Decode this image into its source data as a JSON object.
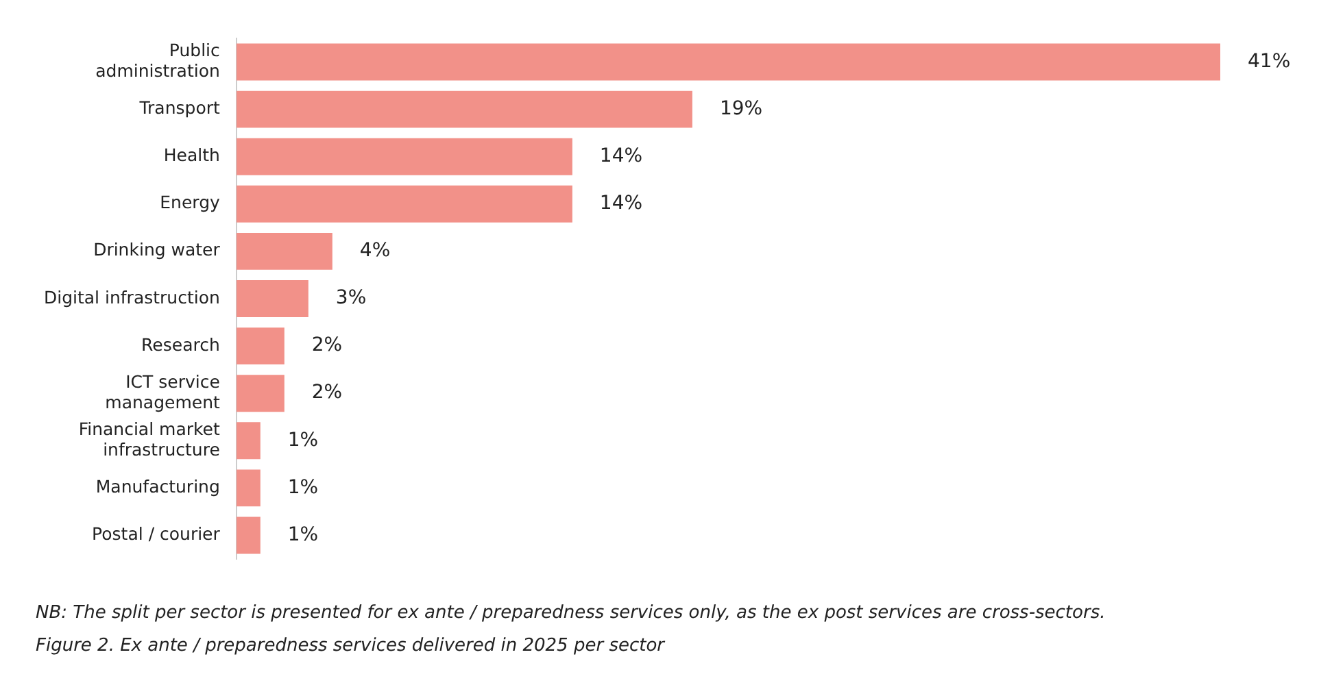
{
  "chart_data": {
    "type": "bar",
    "orientation": "horizontal",
    "categories": [
      "Public\nadministration",
      "Transport",
      "Health",
      "Energy",
      "Drinking water",
      "Digital infrastruction",
      "Research",
      "ICT service\nmanagement",
      "Financial market\ninfrastructure",
      "Manufacturing",
      "Postal / courier"
    ],
    "values": [
      41,
      19,
      14,
      14,
      4,
      3,
      2,
      2,
      1,
      1,
      1
    ],
    "value_labels": [
      "41%",
      "19%",
      "14%",
      "14%",
      "4%",
      "3%",
      "2%",
      "2%",
      "1%",
      "1%",
      "1%"
    ],
    "color": "#f29189",
    "legend": false,
    "annotations": [
      "NB: The split per sector is presented for ex ante / preparedness services only, as the ex post services are cross-sectors.",
      "Figure 2. Ex ante / preparedness services delivered in 2025 per sector"
    ]
  }
}
